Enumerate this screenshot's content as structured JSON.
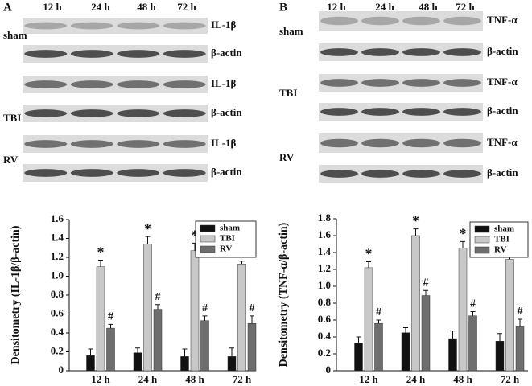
{
  "blots": [
    {
      "panel": "A",
      "lanes": [
        "12 h",
        "24 h",
        "48 h",
        "72 h"
      ],
      "groups": [
        "sham",
        "TBI",
        "RV"
      ],
      "rows": [
        "IL-1β",
        "β-actin",
        "IL-1β",
        "β-actin",
        "IL-1β",
        "β-actin"
      ]
    },
    {
      "panel": "B",
      "lanes": [
        "12 h",
        "24 h",
        "48 h",
        "72 h"
      ],
      "groups": [
        "sham",
        "TBI",
        "RV"
      ],
      "rows": [
        "TNF-α",
        "β-actin",
        "TNF-α",
        "β-actin",
        "TNF-α",
        "β-actin"
      ]
    }
  ],
  "chart_data": [
    {
      "type": "bar",
      "y_label": "Densitometry (IL-1β/β-actin)",
      "categories": [
        "12 h",
        "24 h",
        "48 h",
        "72 h"
      ],
      "ylim": [
        0,
        1.6
      ],
      "yticks": [
        0,
        0.2,
        0.4,
        0.6,
        0.8,
        {
          "value": 1,
          "label": "1.0"
        },
        1.2,
        1.4,
        1.6
      ],
      "legend": "top-right",
      "series": [
        {
          "name": "sham",
          "color": "#111111",
          "values": [
            0.16,
            0.19,
            0.15,
            0.15
          ],
          "errors": [
            0.07,
            0.05,
            0.08,
            0.09
          ]
        },
        {
          "name": "TBI",
          "color": "#c8c8c8",
          "values": [
            1.1,
            1.34,
            1.27,
            1.13
          ],
          "errors": [
            0.07,
            0.08,
            0.08,
            0.03
          ],
          "annotation": "*"
        },
        {
          "name": "RV",
          "color": "#6e6e6e",
          "values": [
            0.45,
            0.65,
            0.53,
            0.5
          ],
          "errors": [
            0.04,
            0.05,
            0.05,
            0.08
          ],
          "annotation": "#"
        }
      ]
    },
    {
      "type": "bar",
      "y_label": "Densitometry (TNF-α/β-actin)",
      "categories": [
        "12 h",
        "24 h",
        "48 h",
        "72 h"
      ],
      "ylim": [
        0,
        1.8
      ],
      "yticks": [
        0,
        0.2,
        0.4,
        0.6,
        0.8,
        {
          "value": 1,
          "label": "1.0"
        },
        1.2,
        1.4,
        1.6,
        1.8
      ],
      "legend": "top-right",
      "series": [
        {
          "name": "sham",
          "color": "#111111",
          "values": [
            0.33,
            0.45,
            0.38,
            0.35
          ],
          "errors": [
            0.07,
            0.06,
            0.09,
            0.09
          ]
        },
        {
          "name": "TBI",
          "color": "#c8c8c8",
          "values": [
            1.22,
            1.6,
            1.45,
            1.32
          ],
          "errors": [
            0.07,
            0.08,
            0.08,
            0.04
          ],
          "annotation": "*"
        },
        {
          "name": "RV",
          "color": "#6e6e6e",
          "values": [
            0.56,
            0.89,
            0.65,
            0.52
          ],
          "errors": [
            0.04,
            0.06,
            0.05,
            0.09
          ],
          "annotation": "#"
        }
      ]
    }
  ]
}
